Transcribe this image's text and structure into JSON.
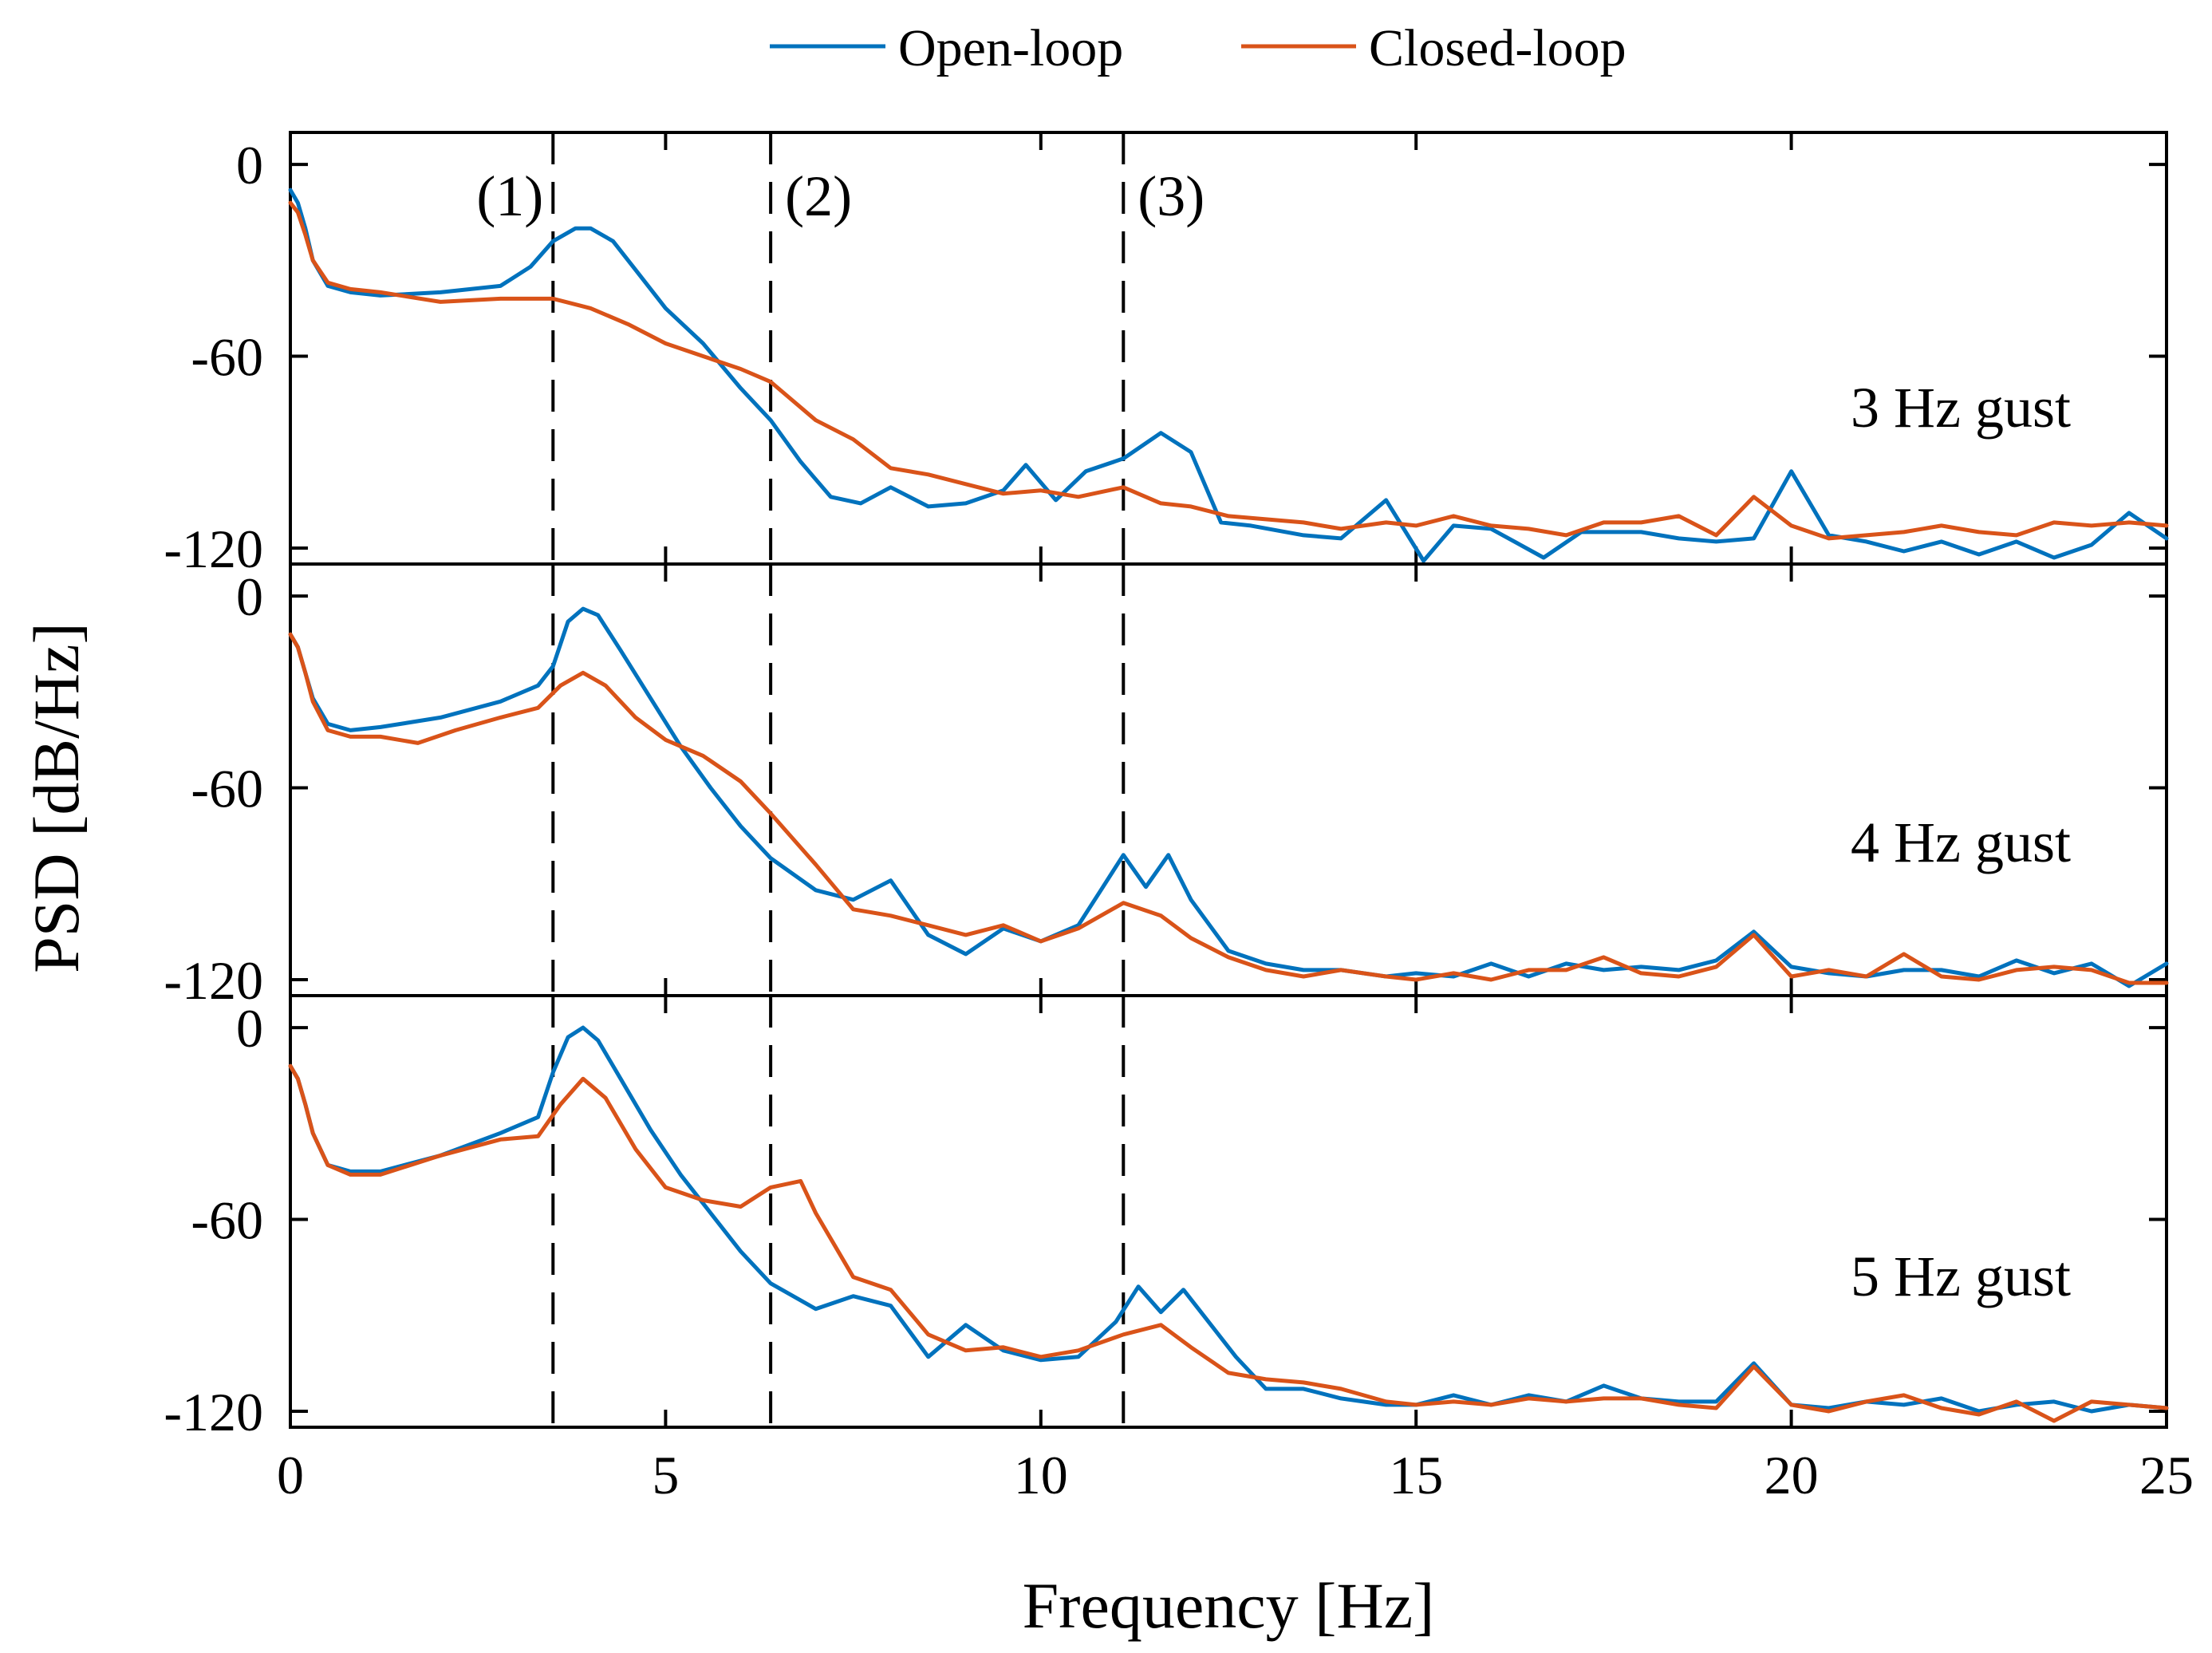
{
  "legend": [
    {
      "label": "Open-loop",
      "color": "#0072BD"
    },
    {
      "label": "Closed-loop",
      "color": "#D95319"
    }
  ],
  "axes": {
    "xlabel": "Frequency [Hz]",
    "ylabel": "PSD [dB/Hz]"
  },
  "chart_data": {
    "type": "line",
    "xlabel": "Frequency [Hz]",
    "ylabel": "PSD [dB/Hz]",
    "xlim": [
      0,
      25
    ],
    "ylim": [
      -125,
      10
    ],
    "xticks": [
      0,
      5,
      10,
      15,
      20,
      25
    ],
    "xtick_labels": [
      "0",
      "5",
      "10",
      "15",
      "20",
      "25"
    ],
    "yticks": [
      0,
      -60,
      -120
    ],
    "ytick_labels": [
      "0",
      "-60",
      "-120"
    ],
    "markers": [
      {
        "label": "(1)",
        "x": 3.5
      },
      {
        "label": "(2)",
        "x": 6.4
      },
      {
        "label": "(3)",
        "x": 11.1
      }
    ],
    "panels": [
      {
        "label": "3 Hz gust",
        "series": [
          {
            "name": "Open-loop",
            "color": "#0072BD",
            "x": [
              0,
              0.1,
              0.2,
              0.3,
              0.5,
              0.8,
              1.2,
              2.0,
              2.8,
              3.2,
              3.5,
              3.8,
              4.0,
              4.3,
              4.6,
              5.0,
              5.5,
              6.0,
              6.4,
              6.8,
              7.2,
              7.6,
              8.0,
              8.5,
              9.0,
              9.5,
              9.8,
              10.2,
              10.6,
              11.1,
              11.6,
              12.0,
              12.4,
              12.8,
              13.5,
              14.0,
              14.6,
              15.1,
              15.5,
              16.0,
              16.7,
              17.2,
              18.0,
              18.5,
              19.0,
              19.5,
              20.0,
              20.5,
              21.0,
              21.5,
              22.0,
              22.5,
              23.0,
              23.5,
              24.0,
              24.5,
              25.0
            ],
            "y": [
              -8,
              -12,
              -20,
              -30,
              -38,
              -40,
              -41,
              -40,
              -38,
              -32,
              -24,
              -20,
              -20,
              -24,
              -33,
              -45,
              -56,
              -70,
              -80,
              -93,
              -104,
              -106,
              -101,
              -107,
              -106,
              -102,
              -94,
              -105,
              -96,
              -92,
              -84,
              -90,
              -112,
              -113,
              -116,
              -117,
              -105,
              -124,
              -113,
              -114,
              -123,
              -115,
              -115,
              -117,
              -118,
              -117,
              -96,
              -116,
              -118,
              -121,
              -118,
              -122,
              -118,
              -123,
              -119,
              -109,
              -117
            ]
          },
          {
            "name": "Closed-loop",
            "color": "#D95319",
            "x": [
              0,
              0.1,
              0.2,
              0.3,
              0.5,
              0.8,
              1.2,
              2.0,
              2.8,
              3.5,
              4.0,
              4.5,
              5.0,
              5.5,
              6.0,
              6.4,
              7.0,
              7.5,
              8.0,
              8.5,
              9.0,
              9.5,
              10.0,
              10.5,
              11.1,
              11.6,
              12.0,
              12.5,
              13.0,
              13.5,
              14.0,
              14.6,
              15.0,
              15.5,
              16.0,
              16.5,
              17.0,
              17.5,
              18.0,
              18.5,
              19.0,
              19.5,
              20.0,
              20.5,
              21.0,
              21.5,
              22.0,
              22.5,
              23.0,
              23.5,
              24.0,
              24.5,
              25.0
            ],
            "y": [
              -12,
              -15,
              -22,
              -30,
              -37,
              -39,
              -40,
              -43,
              -42,
              -42,
              -45,
              -50,
              -56,
              -60,
              -64,
              -68,
              -80,
              -86,
              -95,
              -97,
              -100,
              -103,
              -102,
              -104,
              -101,
              -106,
              -107,
              -110,
              -111,
              -112,
              -114,
              -112,
              -113,
              -110,
              -113,
              -114,
              -116,
              -112,
              -112,
              -110,
              -116,
              -104,
              -113,
              -117,
              -116,
              -115,
              -113,
              -115,
              -116,
              -112,
              -113,
              -112,
              -113
            ]
          }
        ]
      },
      {
        "label": "4 Hz gust",
        "series": [
          {
            "name": "Open-loop",
            "color": "#0072BD",
            "x": [
              0,
              0.1,
              0.2,
              0.3,
              0.5,
              0.8,
              1.2,
              2.0,
              2.8,
              3.3,
              3.5,
              3.7,
              3.9,
              4.1,
              4.4,
              4.8,
              5.2,
              5.6,
              6.0,
              6.4,
              7.0,
              7.5,
              8.0,
              8.5,
              9.0,
              9.5,
              10.0,
              10.5,
              10.8,
              11.1,
              11.4,
              11.7,
              12.0,
              12.5,
              13.0,
              13.5,
              14.0,
              14.6,
              15.0,
              15.5,
              16.0,
              16.5,
              17.0,
              17.5,
              18.0,
              18.5,
              19.0,
              19.5,
              20.0,
              20.5,
              21.0,
              21.5,
              22.0,
              22.5,
              23.0,
              23.5,
              24.0,
              24.5,
              25.0
            ],
            "y": [
              -12,
              -16,
              -24,
              -32,
              -40,
              -42,
              -41,
              -38,
              -33,
              -28,
              -22,
              -8,
              -4,
              -6,
              -17,
              -32,
              -47,
              -60,
              -72,
              -82,
              -92,
              -95,
              -89,
              -106,
              -112,
              -104,
              -108,
              -103,
              -92,
              -81,
              -91,
              -81,
              -95,
              -111,
              -115,
              -117,
              -117,
              -119,
              -118,
              -119,
              -115,
              -119,
              -115,
              -117,
              -116,
              -117,
              -114,
              -105,
              -116,
              -118,
              -119,
              -117,
              -117,
              -119,
              -114,
              -118,
              -115,
              -122,
              -115
            ]
          },
          {
            "name": "Closed-loop",
            "color": "#D95319",
            "x": [
              0,
              0.1,
              0.2,
              0.3,
              0.5,
              0.8,
              1.2,
              1.7,
              2.2,
              2.8,
              3.3,
              3.6,
              3.9,
              4.2,
              4.6,
              5.0,
              5.5,
              6.0,
              6.4,
              7.0,
              7.5,
              8.0,
              8.5,
              9.0,
              9.5,
              10.0,
              10.5,
              11.1,
              11.6,
              12.0,
              12.5,
              13.0,
              13.5,
              14.0,
              14.6,
              15.0,
              15.5,
              16.0,
              16.5,
              17.0,
              17.5,
              18.0,
              18.5,
              19.0,
              19.5,
              20.0,
              20.5,
              21.0,
              21.5,
              22.0,
              22.5,
              23.0,
              23.5,
              24.0,
              24.5,
              25.0
            ],
            "y": [
              -12,
              -16,
              -24,
              -33,
              -42,
              -44,
              -44,
              -46,
              -42,
              -38,
              -35,
              -28,
              -24,
              -28,
              -38,
              -45,
              -50,
              -58,
              -68,
              -84,
              -98,
              -100,
              -103,
              -106,
              -103,
              -108,
              -104,
              -96,
              -100,
              -107,
              -113,
              -117,
              -119,
              -117,
              -119,
              -120,
              -118,
              -120,
              -117,
              -117,
              -113,
              -118,
              -119,
              -116,
              -106,
              -119,
              -117,
              -119,
              -112,
              -119,
              -120,
              -117,
              -116,
              -117,
              -121,
              -121
            ]
          }
        ]
      },
      {
        "label": "5 Hz gust",
        "series": [
          {
            "name": "Open-loop",
            "color": "#0072BD",
            "x": [
              0,
              0.1,
              0.2,
              0.3,
              0.5,
              0.8,
              1.2,
              2.0,
              2.8,
              3.3,
              3.5,
              3.7,
              3.9,
              4.1,
              4.4,
              4.8,
              5.2,
              5.6,
              6.0,
              6.4,
              7.0,
              7.5,
              8.0,
              8.5,
              9.0,
              9.5,
              10.0,
              10.5,
              11.0,
              11.3,
              11.6,
              11.9,
              12.2,
              12.6,
              13.0,
              13.5,
              14.0,
              14.6,
              15.0,
              15.5,
              16.0,
              16.5,
              17.0,
              17.5,
              18.0,
              18.5,
              19.0,
              19.5,
              20.0,
              20.5,
              21.0,
              21.5,
              22.0,
              22.5,
              23.0,
              23.5,
              24.0,
              24.5,
              25.0
            ],
            "y": [
              -12,
              -16,
              -24,
              -33,
              -43,
              -45,
              -45,
              -40,
              -33,
              -28,
              -14,
              -3,
              0,
              -4,
              -16,
              -32,
              -46,
              -58,
              -70,
              -80,
              -88,
              -84,
              -87,
              -103,
              -93,
              -101,
              -104,
              -103,
              -92,
              -81,
              -89,
              -82,
              -91,
              -103,
              -113,
              -113,
              -116,
              -118,
              -118,
              -115,
              -118,
              -115,
              -117,
              -112,
              -116,
              -117,
              -117,
              -105,
              -118,
              -119,
              -117,
              -118,
              -116,
              -120,
              -118,
              -117,
              -120,
              -118,
              -119
            ]
          },
          {
            "name": "Closed-loop",
            "color": "#D95319",
            "x": [
              0,
              0.1,
              0.2,
              0.3,
              0.5,
              0.8,
              1.2,
              2.0,
              2.8,
              3.3,
              3.6,
              3.9,
              4.2,
              4.6,
              5.0,
              5.5,
              6.0,
              6.4,
              6.8,
              7.0,
              7.5,
              8.0,
              8.5,
              9.0,
              9.5,
              10.0,
              10.5,
              11.1,
              11.6,
              12.0,
              12.5,
              13.0,
              13.5,
              14.0,
              14.6,
              15.0,
              15.5,
              16.0,
              16.5,
              17.0,
              17.5,
              18.0,
              18.5,
              19.0,
              19.5,
              20.0,
              20.5,
              21.0,
              21.5,
              22.0,
              22.5,
              23.0,
              23.5,
              24.0,
              24.5,
              25.0
            ],
            "y": [
              -12,
              -16,
              -24,
              -33,
              -43,
              -46,
              -46,
              -40,
              -35,
              -34,
              -24,
              -16,
              -22,
              -38,
              -50,
              -54,
              -56,
              -50,
              -48,
              -58,
              -78,
              -82,
              -96,
              -101,
              -100,
              -103,
              -101,
              -96,
              -93,
              -100,
              -108,
              -110,
              -111,
              -113,
              -117,
              -118,
              -117,
              -118,
              -116,
              -117,
              -116,
              -116,
              -118,
              -119,
              -106,
              -118,
              -120,
              -117,
              -115,
              -119,
              -121,
              -117,
              -123,
              -117,
              -118,
              -119
            ]
          }
        ]
      }
    ]
  }
}
